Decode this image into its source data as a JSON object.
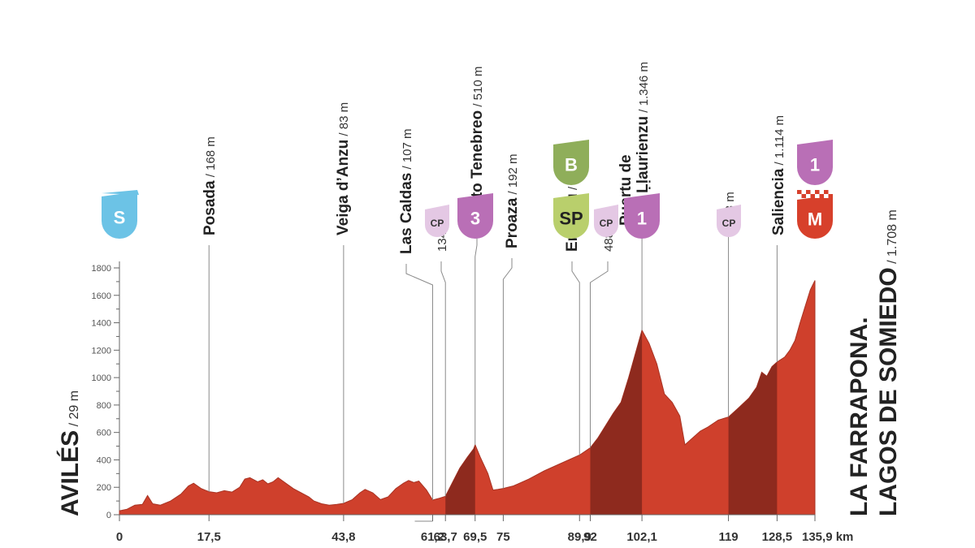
{
  "chart_data": {
    "type": "area",
    "title": "",
    "xlabel": "",
    "ylabel": "",
    "x_unit": "km",
    "xlim": [
      0,
      135.9
    ],
    "ylim": [
      0,
      1800
    ],
    "yticks": [
      0,
      200,
      400,
      600,
      800,
      1000,
      1200,
      1400,
      1600,
      1800
    ],
    "xticks": [
      {
        "value": 0,
        "label": "0"
      },
      {
        "value": 17.5,
        "label": "17,5"
      },
      {
        "value": 43.8,
        "label": "43,8"
      },
      {
        "value": 61.2,
        "label": "61,2"
      },
      {
        "value": 63.7,
        "label": "63,7"
      },
      {
        "value": 69.5,
        "label": "69,5"
      },
      {
        "value": 75,
        "label": "75"
      },
      {
        "value": 89.9,
        "label": "89,9"
      },
      {
        "value": 92,
        "label": "92"
      },
      {
        "value": 102.1,
        "label": "102,1"
      },
      {
        "value": 119,
        "label": "119"
      },
      {
        "value": 128.5,
        "label": "128,5"
      },
      {
        "value": 135.9,
        "label": "135,9 km"
      }
    ],
    "profile": [
      [
        0,
        29
      ],
      [
        1.5,
        40
      ],
      [
        3,
        70
      ],
      [
        4.5,
        75
      ],
      [
        5.5,
        140
      ],
      [
        6.5,
        80
      ],
      [
        8,
        70
      ],
      [
        10,
        100
      ],
      [
        12,
        150
      ],
      [
        13.5,
        210
      ],
      [
        14.5,
        230
      ],
      [
        16,
        190
      ],
      [
        17.5,
        168
      ],
      [
        19,
        160
      ],
      [
        20.5,
        175
      ],
      [
        22,
        165
      ],
      [
        23.5,
        200
      ],
      [
        24.5,
        260
      ],
      [
        25.5,
        270
      ],
      [
        27,
        240
      ],
      [
        28,
        255
      ],
      [
        29,
        225
      ],
      [
        30,
        240
      ],
      [
        31,
        270
      ],
      [
        32.5,
        230
      ],
      [
        34,
        190
      ],
      [
        35.5,
        160
      ],
      [
        37,
        130
      ],
      [
        38,
        100
      ],
      [
        39.5,
        80
      ],
      [
        41,
        70
      ],
      [
        42.5,
        75
      ],
      [
        43.8,
        83
      ],
      [
        45.5,
        110
      ],
      [
        47,
        160
      ],
      [
        48,
        185
      ],
      [
        49.5,
        160
      ],
      [
        51,
        110
      ],
      [
        52.5,
        130
      ],
      [
        54,
        190
      ],
      [
        55.5,
        230
      ],
      [
        56.5,
        250
      ],
      [
        57.5,
        235
      ],
      [
        58.5,
        245
      ],
      [
        60,
        180
      ],
      [
        61.2,
        107
      ],
      [
        62.5,
        120
      ],
      [
        63.7,
        134
      ],
      [
        65,
        230
      ],
      [
        66.5,
        340
      ],
      [
        68,
        420
      ],
      [
        69.2,
        480
      ],
      [
        69.5,
        510
      ],
      [
        70.5,
        420
      ],
      [
        72,
        300
      ],
      [
        73,
        180
      ],
      [
        74,
        185
      ],
      [
        75,
        192
      ],
      [
        77,
        210
      ],
      [
        80,
        260
      ],
      [
        83,
        320
      ],
      [
        86,
        370
      ],
      [
        89.9,
        435
      ],
      [
        92,
        488
      ],
      [
        93.5,
        560
      ],
      [
        95,
        650
      ],
      [
        96.5,
        740
      ],
      [
        98,
        820
      ],
      [
        99.5,
        1000
      ],
      [
        101,
        1200
      ],
      [
        102.1,
        1346
      ],
      [
        103.5,
        1250
      ],
      [
        105,
        1100
      ],
      [
        106.5,
        880
      ],
      [
        108,
        820
      ],
      [
        109.5,
        720
      ],
      [
        110.5,
        510
      ],
      [
        112,
        560
      ],
      [
        113.5,
        610
      ],
      [
        115,
        640
      ],
      [
        117,
        690
      ],
      [
        119,
        713
      ],
      [
        121,
        780
      ],
      [
        123,
        850
      ],
      [
        124.5,
        930
      ],
      [
        125.5,
        1040
      ],
      [
        126.5,
        1010
      ],
      [
        127.5,
        1080
      ],
      [
        128.5,
        1114
      ],
      [
        130,
        1150
      ],
      [
        131,
        1200
      ],
      [
        132,
        1270
      ],
      [
        133,
        1400
      ],
      [
        134,
        1520
      ],
      [
        135,
        1640
      ],
      [
        135.9,
        1708
      ]
    ],
    "shaded_ranges": [
      [
        63.7,
        69.5
      ],
      [
        92,
        102.1
      ],
      [
        119,
        128.5
      ]
    ],
    "start": {
      "name": "AVILÉS",
      "alt": "29 m"
    },
    "finish": {
      "line1": "LA FARRAPONA.",
      "line2": "LAGOS DE SOMIEDO",
      "alt": "1.708 m"
    },
    "waypoints": [
      {
        "km": 17.5,
        "name": "Posada",
        "alt": "168 m"
      },
      {
        "km": 43.8,
        "name": "Veiga d’Anzu",
        "alt": "83 m"
      },
      {
        "km": 61.2,
        "name": "Las Caldas",
        "alt": "107 m"
      },
      {
        "km": 63.7,
        "name": "",
        "alt": "134 m"
      },
      {
        "km": 69.5,
        "name": "L’Alto Tenebreo",
        "alt": "510 m"
      },
      {
        "km": 75,
        "name": "Proaza",
        "alt": "192 m"
      },
      {
        "km": 89.9,
        "name": "Entragu",
        "alt": "435 m"
      },
      {
        "km": 92,
        "name": "",
        "alt": "488 m"
      },
      {
        "km": 102.1,
        "name_line1": "Puertu de",
        "name_line2": "San Ḷḷaurienzu",
        "alt": "1.346 m"
      },
      {
        "km": 119,
        "name": "",
        "alt": "713 m"
      },
      {
        "km": 128.5,
        "name": "Saliencia",
        "alt": "1.114 m"
      }
    ],
    "badges": [
      {
        "km": 0,
        "text": "S",
        "kind": "start",
        "color": "#6cc3e6"
      },
      {
        "km": 63.7,
        "text": "CP",
        "kind": "cp",
        "color": "#e4c8e4"
      },
      {
        "km": 69.5,
        "text": "3",
        "kind": "climb",
        "color": "#b96fb6"
      },
      {
        "km": 89.9,
        "text": "SP",
        "kind": "sprint",
        "color": "#b9cf6c"
      },
      {
        "km": 89.9,
        "text": "B",
        "kind": "bonus",
        "color": "#8fae5a"
      },
      {
        "km": 92,
        "text": "CP",
        "kind": "cp",
        "color": "#e4c8e4"
      },
      {
        "km": 102.1,
        "text": "1",
        "kind": "climb",
        "color": "#b96fb6"
      },
      {
        "km": 119,
        "text": "CP",
        "kind": "cp",
        "color": "#e4c8e4"
      },
      {
        "km": 135.9,
        "text": "1",
        "kind": "climb",
        "color": "#b96fb6"
      },
      {
        "km": 135.9,
        "text": "M",
        "kind": "finish",
        "color": "#d7402b"
      }
    ],
    "colors": {
      "fill": "#cf402c",
      "shade": "#8e2a1e",
      "outline": "#a83323",
      "axis": "#666666"
    }
  }
}
